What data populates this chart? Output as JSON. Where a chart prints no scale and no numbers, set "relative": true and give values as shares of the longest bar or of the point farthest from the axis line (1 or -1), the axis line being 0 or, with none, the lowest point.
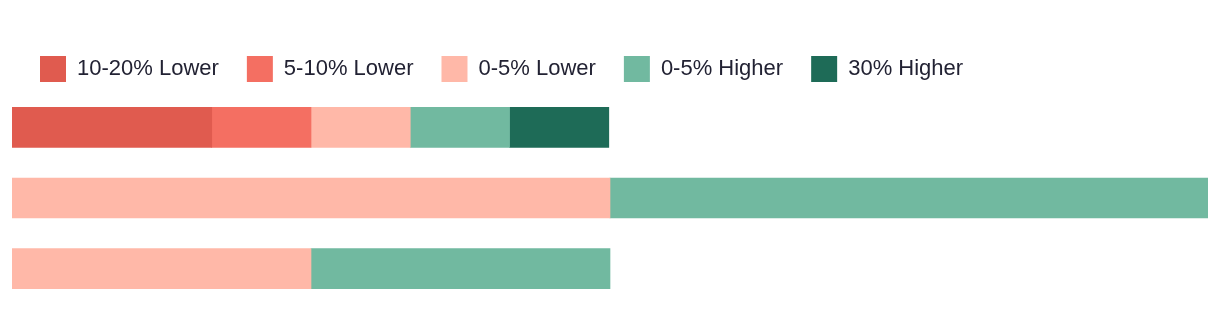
{
  "chart_data": {
    "type": "bar",
    "orientation": "horizontal",
    "stacked": true,
    "relative": true,
    "legend": "top left",
    "tick_labels": false,
    "categories": [
      null,
      null,
      null
    ],
    "series": [
      {
        "name": "10-20% Lower",
        "color": "#e05b4f",
        "values": [
          0.167,
          null,
          null
        ]
      },
      {
        "name": "5-10% Lower",
        "color": "#f46f62",
        "values": [
          0.083,
          null,
          null
        ]
      },
      {
        "name": "0-5% Lower",
        "color": "#ffb8a8",
        "values": [
          0.083,
          0.5,
          0.25
        ]
      },
      {
        "name": "0-5% Higher",
        "color": "#71b9a0",
        "values": [
          0.083,
          0.5,
          0.25
        ]
      },
      {
        "name": "30% Higher",
        "color": "#1e6b57",
        "values": [
          0.083,
          null,
          null
        ]
      }
    ]
  }
}
